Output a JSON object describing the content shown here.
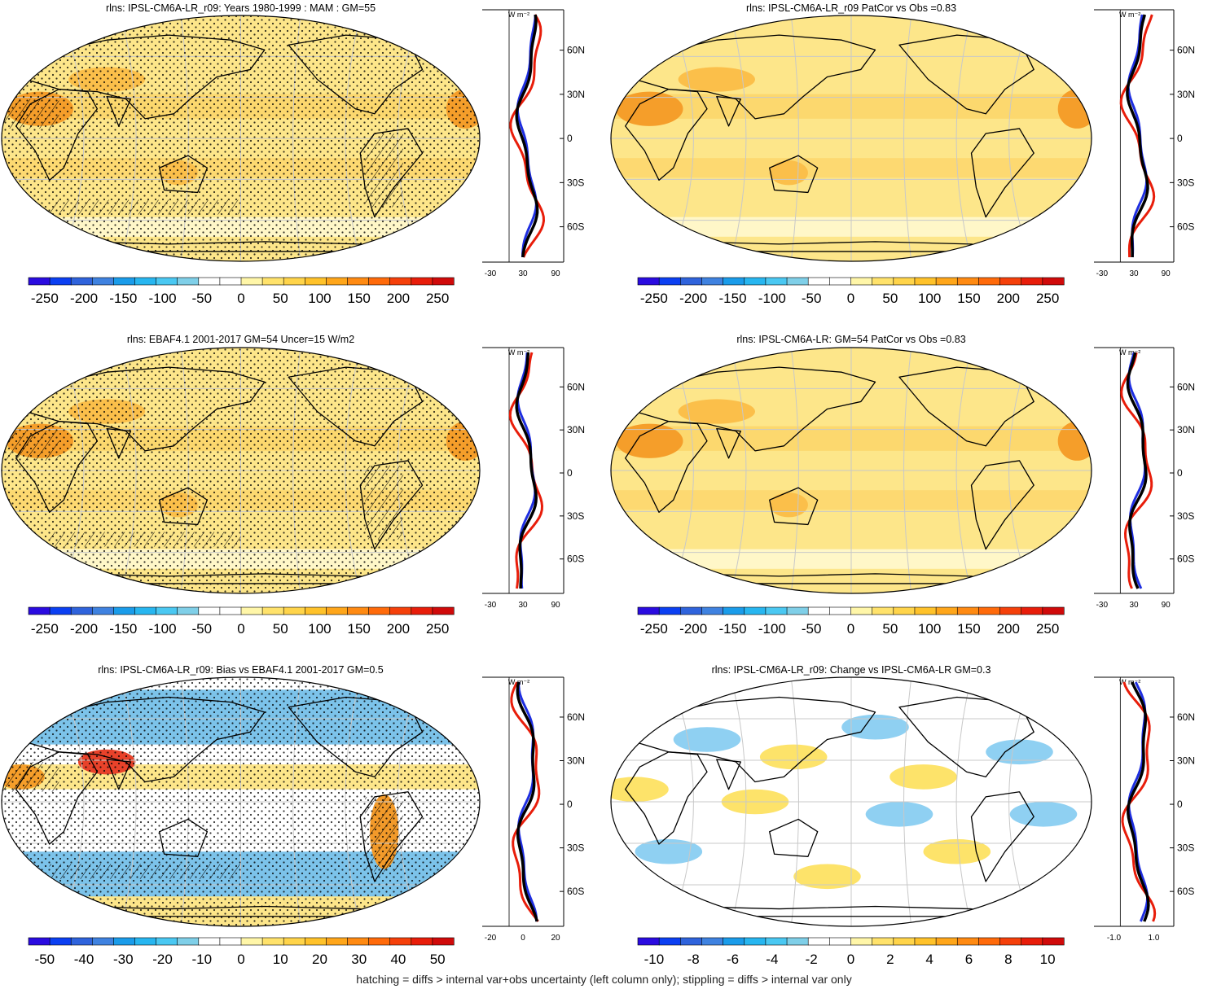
{
  "footnote": "hatching = diffs > internal var+obs uncertainty (left column only); stippling = diffs > internal var only",
  "colors": {
    "scale_abs": [
      "#2a0be0",
      "#0b3ff2",
      "#2f63dc",
      "#3f82e0",
      "#1a9cea",
      "#27b6f0",
      "#4ac8f2",
      "#7fcfe8",
      "#ffffff",
      "#ffffff",
      "#fff6a8",
      "#ffe26b",
      "#ffd44a",
      "#ffc22a",
      "#ffa61a",
      "#ff8a12",
      "#ff6a0a",
      "#f5400a",
      "#e81d0a",
      "#d00a0a"
    ],
    "map_abs_base": "#fde68a",
    "map_abs_warm": "#fbbf4a",
    "map_abs_hot": "#f59e2a",
    "bias_blue": "#7cc3ea",
    "bias_warm": "#fbbf4a",
    "bias_hot": "#e8422a",
    "change_blue": "#8fd0f2",
    "change_warm": "#fde36a",
    "land": "#000000",
    "grid": "#c8c8c8",
    "profile_model": "#000000",
    "profile_obs": "#e81d0a",
    "profile_other": "#1e2ee0"
  },
  "panels": [
    {
      "id": "p1",
      "title": "rlns: IPSL-CM6A-LR_r09: Years 1980-1999 : MAM : GM=55",
      "style": "abs",
      "stipple": true,
      "hatch": true,
      "colorbar_labels": [
        "-250",
        "-200",
        "-150",
        "-100",
        "-50",
        "0",
        "50",
        "100",
        "150",
        "200",
        "250"
      ],
      "profile_xticks": [
        "-30",
        "30",
        "90"
      ],
      "profile_yticks": [
        "60N",
        "30N",
        "0",
        "30S",
        "60S"
      ],
      "profile_unit": "W m⁻²"
    },
    {
      "id": "p2",
      "title": "rlns: IPSL-CM6A-LR_r09 PatCor vs Obs =0.83",
      "style": "abs2",
      "stipple": false,
      "hatch": false,
      "colorbar_labels": [
        "-250",
        "-200",
        "-150",
        "-100",
        "-50",
        "0",
        "50",
        "100",
        "150",
        "200",
        "250"
      ],
      "profile_xticks": [
        "-30",
        "30",
        "90"
      ],
      "profile_yticks": [
        "60N",
        "30N",
        "0",
        "30S",
        "60S"
      ],
      "profile_unit": "W m⁻²"
    },
    {
      "id": "p3",
      "title": "rlns: EBAF4.1 2001-2017 GM=54 Uncer=15 W/m2",
      "style": "abs",
      "stipple": true,
      "hatch": true,
      "colorbar_labels": [
        "-250",
        "-200",
        "-150",
        "-100",
        "-50",
        "0",
        "50",
        "100",
        "150",
        "200",
        "250"
      ],
      "profile_xticks": [
        "-30",
        "30",
        "90"
      ],
      "profile_yticks": [
        "60N",
        "30N",
        "0",
        "30S",
        "60S"
      ],
      "profile_unit": "W m⁻²"
    },
    {
      "id": "p4",
      "title": "rlns: IPSL-CM6A-LR: GM=54 PatCor vs Obs =0.83",
      "style": "abs2",
      "stipple": false,
      "hatch": false,
      "colorbar_labels": [
        "-250",
        "-200",
        "-150",
        "-100",
        "-50",
        "0",
        "50",
        "100",
        "150",
        "200",
        "250"
      ],
      "profile_xticks": [
        "-30",
        "30",
        "90"
      ],
      "profile_yticks": [
        "60N",
        "30N",
        "0",
        "30S",
        "60S"
      ],
      "profile_unit": "W m⁻²"
    },
    {
      "id": "p5",
      "title": "rlns: IPSL-CM6A-LR_r09: Bias vs EBAF4.1 2001-2017 GM=0.5",
      "style": "bias",
      "stipple": true,
      "hatch": true,
      "colorbar_labels": [
        "-50",
        "-40",
        "-30",
        "-20",
        "-10",
        "0",
        "10",
        "20",
        "30",
        "40",
        "50"
      ],
      "profile_xticks": [
        "-20",
        "0",
        "20"
      ],
      "profile_yticks": [
        "60N",
        "30N",
        "0",
        "30S",
        "60S"
      ],
      "profile_unit": "W m⁻²"
    },
    {
      "id": "p6",
      "title": "rlns: IPSL-CM6A-LR_r09: Change vs IPSL-CM6A-LR GM=0.3",
      "style": "change",
      "stipple": false,
      "hatch": false,
      "colorbar_labels": [
        "-10",
        "-8",
        "-6",
        "-4",
        "-2",
        "0",
        "2",
        "4",
        "6",
        "8",
        "10"
      ],
      "profile_xticks": [
        "-1.0",
        "1.0"
      ],
      "profile_yticks": [
        "60N",
        "30N",
        "0",
        "30S",
        "60S"
      ],
      "profile_unit": "W m⁻²"
    }
  ]
}
